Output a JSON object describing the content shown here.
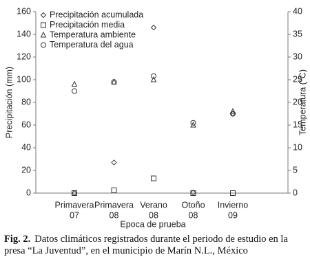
{
  "chart_data": {
    "type": "scatter",
    "categories": [
      [
        "Primavera",
        "07"
      ],
      [
        "Primavera",
        "08"
      ],
      [
        "Verano",
        "08"
      ],
      [
        "Otoño",
        "08"
      ],
      [
        "Invierno",
        "09"
      ]
    ],
    "x_label": "Epoca de prueba",
    "y_label": "Precipitación (mm)",
    "y2_label": "Temperatura (°C)",
    "ylim": [
      0,
      160
    ],
    "yticks": [
      0,
      20,
      40,
      60,
      80,
      100,
      120,
      140,
      160
    ],
    "y2lim": [
      0,
      40
    ],
    "y2ticks": [
      0,
      5,
      10,
      15,
      20,
      25,
      30,
      35,
      40
    ],
    "legend": "top-left",
    "series": [
      {
        "name": "Precipitación acumulada",
        "marker": "diamond",
        "color": "#333333",
        "values": [
          0,
          27,
          146,
          0.5,
          70
        ]
      },
      {
        "name": "Precipitación media",
        "marker": "square",
        "color": "#333333",
        "values": [
          0,
          2.5,
          13,
          0,
          0
        ]
      },
      {
        "name": "Temperatura ambiente",
        "marker": "triangle",
        "color": "#333333",
        "axis": "y2",
        "values": [
          24,
          24.5,
          25,
          15,
          18
        ]
      },
      {
        "name": "Temperatura del agua",
        "marker": "circle",
        "color": "#333333",
        "axis": "y2",
        "values": [
          22.5,
          24.5,
          25.8,
          15.5,
          17.5
        ]
      }
    ]
  },
  "caption": {
    "label": "Fig. 2.",
    "text": "Datos climáticos registrados durante el periodo de estudio en la presa “La Juventud”, en el municipio de Marín N.L., México"
  }
}
